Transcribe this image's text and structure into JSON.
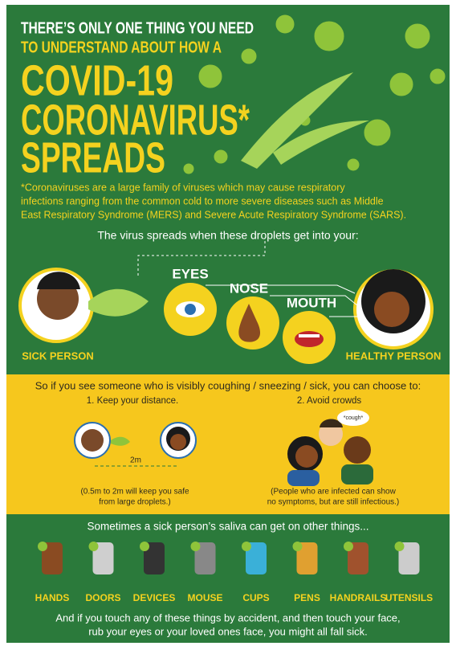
{
  "header": {
    "intro_lines": [
      "THERE’S ONLY ONE THING YOU NEED",
      "TO UNDERSTAND ABOUT HOW A"
    ],
    "title_lines": [
      "COVID-19",
      "CORONAVIRUS*",
      "SPREADS"
    ]
  },
  "footnote_lines": [
    "*Coronaviruses are a large family of viruses which may cause respiratory",
    "infections ranging from the common cold to more severe diseases such as Middle",
    "East Respiratory Syndrome (MERS) and Severe Acute Respiratory Syndrome (SARS)."
  ],
  "spread": {
    "heading": "The virus spreads when these droplets get into your:",
    "sick": "SICK PERSON",
    "healthy": "HEALTHY PERSON",
    "routes": [
      "EYES",
      "NOSE",
      "MOUTH"
    ]
  },
  "prevention": {
    "heading": "So if you see someone who is visibly coughing / sneezing / sick, you can choose to:",
    "option1": "1. Keep your distance.",
    "option2": "2. Avoid crowds",
    "distance": "2m",
    "cough": "*cough*",
    "note1_lines": [
      "(0.5m to 2m will keep you safe",
      "from large droplets.)"
    ],
    "note2_lines": [
      "(People who are infected can show",
      "no symptoms, but are still infectious.)"
    ]
  },
  "surfaces": {
    "heading": "Sometimes a sick person’s saliva can get on other things...",
    "items": [
      "HANDS",
      "DOORS",
      "DEVICES",
      "MOUSE",
      "CUPS",
      "PENS",
      "HANDRAILS",
      "UTENSILS"
    ],
    "closing_lines": [
      "And if you touch any of these things by accident, and then touch your face,",
      "rub your eyes or your loved ones face, you might all fall sick."
    ]
  }
}
